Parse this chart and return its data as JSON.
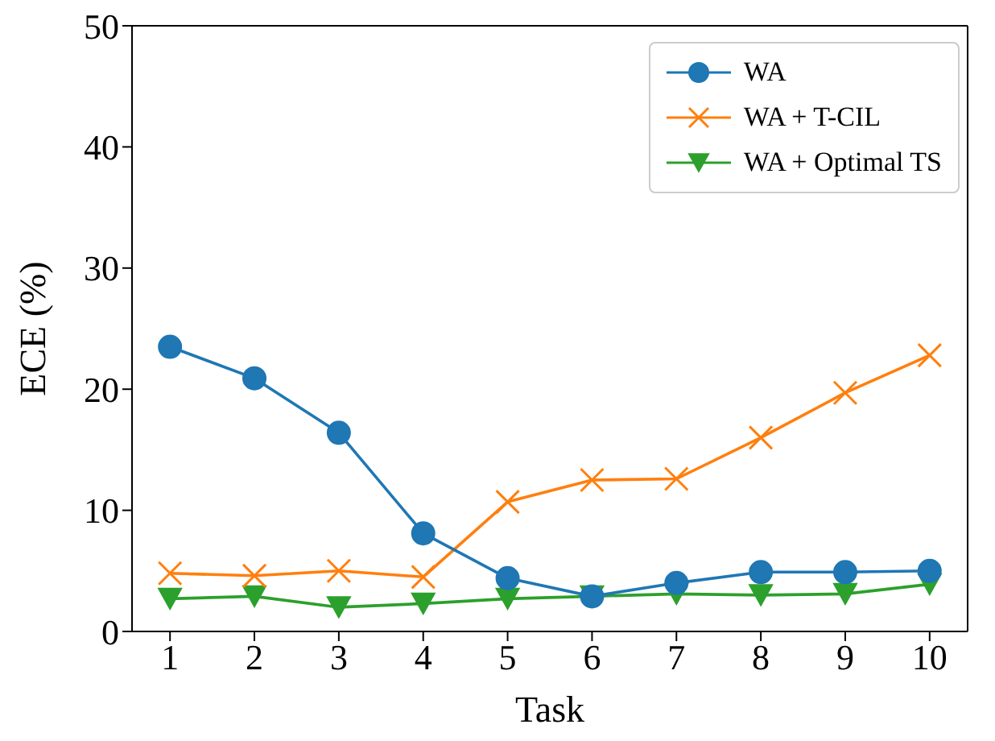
{
  "chart_data": {
    "type": "line",
    "xlabel": "Task",
    "ylabel": "ECE (%)",
    "x": [
      1,
      2,
      3,
      4,
      5,
      6,
      7,
      8,
      9,
      10
    ],
    "xlim": [
      0.55,
      10.45
    ],
    "xticks": [
      1,
      2,
      3,
      4,
      5,
      6,
      7,
      8,
      9,
      10
    ],
    "ylim": [
      0,
      50
    ],
    "yticks": [
      0,
      10,
      20,
      30,
      40,
      50
    ],
    "grid": false,
    "legend": "top right",
    "series": [
      {
        "name": "WA",
        "color": "#1f77b4",
        "marker": "circle",
        "values": [
          23.5,
          20.9,
          16.4,
          8.1,
          4.4,
          2.9,
          4.0,
          4.9,
          4.9,
          5.0
        ]
      },
      {
        "name": "WA + T-CIL",
        "color": "#ff7f0e",
        "marker": "cross",
        "values": [
          4.8,
          4.6,
          5.0,
          4.5,
          10.7,
          12.5,
          12.6,
          16.0,
          19.7,
          22.8
        ]
      },
      {
        "name": "WA + Optimal TS",
        "color": "#2ca02c",
        "marker": "triangle",
        "values": [
          2.7,
          2.9,
          2.0,
          2.3,
          2.7,
          2.9,
          3.1,
          3.0,
          3.1,
          3.9
        ]
      }
    ]
  }
}
